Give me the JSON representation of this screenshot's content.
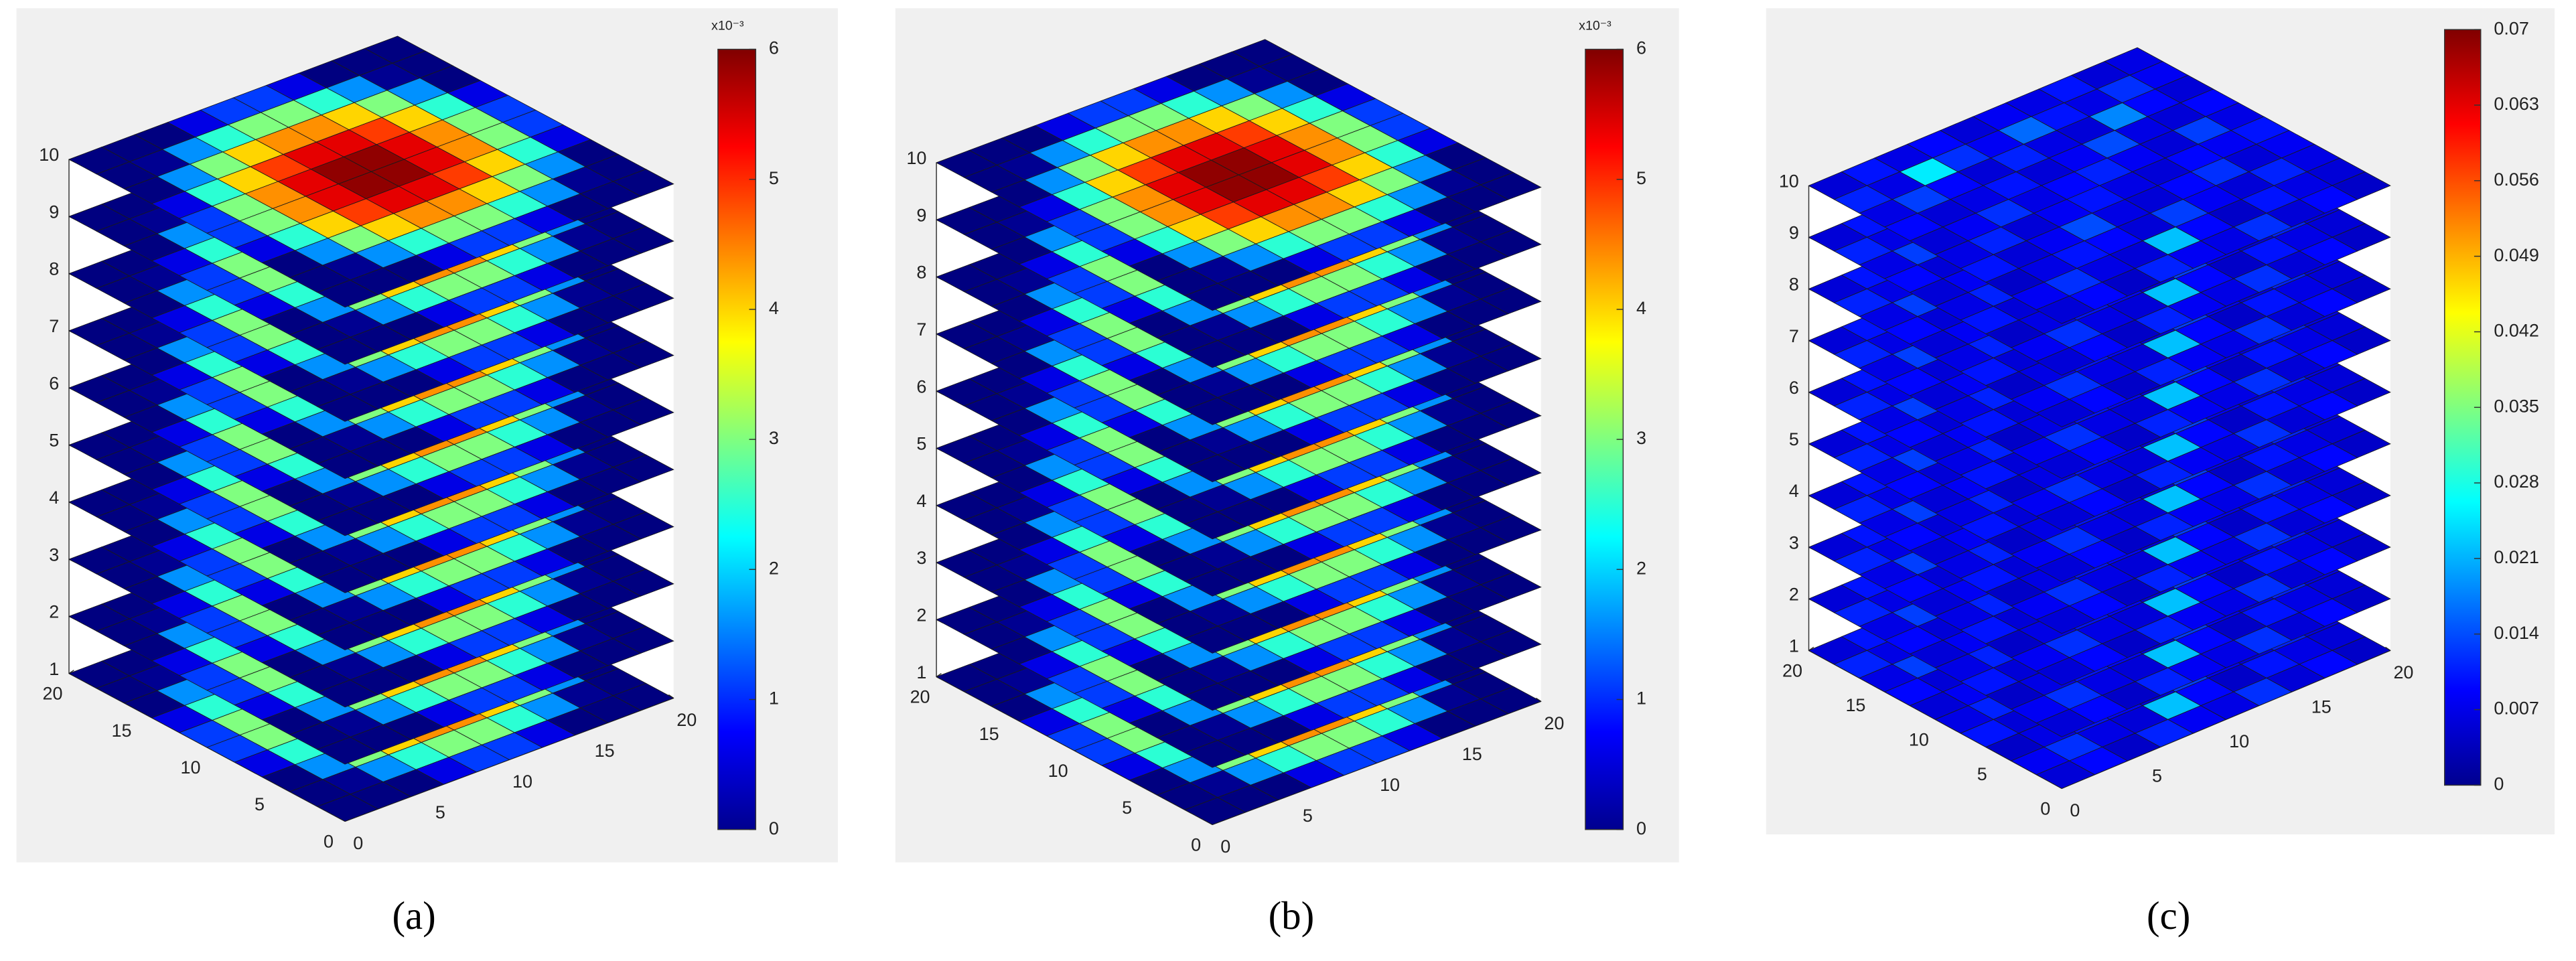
{
  "chart_data": [
    {
      "type": "heatmap3d",
      "label": "(a)",
      "colormap": "jet",
      "xlim": [
        0,
        20
      ],
      "ylim": [
        0,
        20
      ],
      "zlim": [
        1,
        10
      ],
      "xticks": [
        0,
        5,
        10,
        15,
        20
      ],
      "yticks": [
        0,
        5,
        10,
        15,
        20
      ],
      "zticks": [
        1,
        2,
        3,
        4,
        5,
        6,
        7,
        8,
        9,
        10
      ],
      "layers": [
        1,
        2,
        3,
        4,
        5,
        6,
        7,
        8,
        9,
        10
      ],
      "values": [
        [
          0,
          0,
          0,
          0.6,
          1.1,
          1.1,
          0.6,
          0,
          0,
          0
        ],
        [
          0,
          0.1,
          1.6,
          2.5,
          3,
          3,
          2.5,
          1.6,
          0.1,
          0
        ],
        [
          0,
          1.6,
          3,
          4,
          4.4,
          4.4,
          4,
          3,
          1.6,
          0
        ],
        [
          0.6,
          2.5,
          4,
          4.9,
          5.4,
          5.4,
          4.9,
          4,
          2.5,
          0.6
        ],
        [
          1.1,
          3,
          4.4,
          5.4,
          5.9,
          5.9,
          5.4,
          4.4,
          3,
          1.1
        ],
        [
          1.1,
          3,
          4.4,
          5.4,
          5.9,
          5.9,
          5.4,
          4.4,
          3,
          1.1
        ],
        [
          0.6,
          2.5,
          4,
          4.9,
          5.4,
          5.4,
          4.9,
          4,
          2.5,
          0.6
        ],
        [
          0,
          1.6,
          3,
          4,
          4.4,
          4.4,
          4,
          3,
          1.6,
          0
        ],
        [
          0,
          0.1,
          1.6,
          2.5,
          3,
          3,
          2.5,
          1.6,
          0.1,
          0
        ],
        [
          0,
          0,
          0,
          0.6,
          1.1,
          1.1,
          0.6,
          0,
          0,
          0
        ]
      ],
      "clim": [
        0,
        6
      ],
      "cticks": [
        0,
        1,
        2,
        3,
        4,
        5,
        6
      ],
      "colorbar_label": "x10⁻³"
    },
    {
      "type": "heatmap3d",
      "label": "(b)",
      "colormap": "jet",
      "xlim": [
        0,
        20
      ],
      "ylim": [
        0,
        20
      ],
      "zlim": [
        1,
        10
      ],
      "xticks": [
        0,
        5,
        10,
        15,
        20
      ],
      "yticks": [
        0,
        5,
        10,
        15,
        20
      ],
      "zticks": [
        1,
        2,
        3,
        4,
        5,
        6,
        7,
        8,
        9,
        10
      ],
      "layers": [
        1,
        2,
        3,
        4,
        5,
        6,
        7,
        8,
        9,
        10
      ],
      "values": [
        [
          0,
          0,
          0,
          0.6,
          1.1,
          1.1,
          0.6,
          0,
          0,
          0
        ],
        [
          0,
          0.1,
          1.6,
          2.5,
          3,
          3,
          2.5,
          1.6,
          0.1,
          0
        ],
        [
          0,
          1.6,
          3,
          4,
          4.4,
          4.4,
          4,
          3,
          1.6,
          0
        ],
        [
          0.6,
          2.5,
          4,
          4.9,
          5.4,
          5.4,
          4.9,
          4,
          2.5,
          0.6
        ],
        [
          1.1,
          3,
          4.4,
          5.4,
          5.9,
          5.9,
          5.4,
          4.4,
          3,
          1.1
        ],
        [
          1.1,
          3,
          4.4,
          5.4,
          5.9,
          5.9,
          5.4,
          4.4,
          3,
          1.1
        ],
        [
          0.6,
          2.5,
          4,
          4.9,
          5.4,
          5.4,
          4.9,
          4,
          2.5,
          0.6
        ],
        [
          0,
          1.6,
          3,
          4,
          4.4,
          4.4,
          4,
          3,
          1.6,
          0
        ],
        [
          0,
          0.1,
          1.6,
          2.5,
          3,
          3,
          2.5,
          1.6,
          0.1,
          0
        ],
        [
          0,
          0,
          0,
          0.6,
          1.1,
          1.1,
          0.6,
          0,
          0,
          0
        ]
      ],
      "clim": [
        0,
        6
      ],
      "cticks": [
        0,
        1,
        2,
        3,
        4,
        5,
        6
      ],
      "colorbar_label": "x10⁻³"
    },
    {
      "type": "heatmap3d",
      "label": "(c)",
      "colormap": "jet",
      "xlim": [
        0,
        20
      ],
      "ylim": [
        0,
        20
      ],
      "zlim": [
        1,
        10
      ],
      "xticks": [
        0,
        5,
        10,
        15,
        20
      ],
      "yticks": [
        0,
        5,
        10,
        15,
        20
      ],
      "zticks": [
        1,
        2,
        3,
        4,
        5,
        6,
        7,
        8,
        9,
        10
      ],
      "layers": [
        1,
        2,
        3,
        4,
        5,
        6,
        7,
        8,
        9,
        10
      ],
      "values": [
        [
          0.006,
          0.009,
          0.005,
          0.011,
          0.008,
          0.007,
          0.012,
          0.006,
          0.009,
          0.005
        ],
        [
          0.008,
          0.012,
          0.007,
          0.006,
          0.022,
          0.009,
          0.005,
          0.01,
          0.007,
          0.006
        ],
        [
          0.005,
          0.007,
          0.01,
          0.009,
          0.006,
          0.013,
          0.008,
          0.006,
          0.011,
          0.007
        ],
        [
          0.01,
          0.006,
          0.008,
          0.014,
          0.007,
          0.006,
          0.009,
          0.012,
          0.006,
          0.008
        ],
        [
          0.007,
          0.011,
          0.006,
          0.008,
          0.01,
          0.007,
          0.006,
          0.009,
          0.008,
          0.01
        ],
        [
          0.006,
          0.008,
          0.012,
          0.007,
          0.009,
          0.011,
          0.008,
          0.006,
          0.013,
          0.007
        ],
        [
          0.009,
          0.006,
          0.007,
          0.01,
          0.006,
          0.008,
          0.014,
          0.007,
          0.006,
          0.009
        ],
        [
          0.007,
          0.013,
          0.009,
          0.006,
          0.011,
          0.007,
          0.006,
          0.018,
          0.009,
          0.006
        ],
        [
          0.011,
          0.007,
          0.025,
          0.012,
          0.008,
          0.016,
          0.01,
          0.007,
          0.012,
          0.008
        ],
        [
          0.006,
          0.01,
          0.007,
          0.009,
          0.006,
          0.008,
          0.007,
          0.01,
          0.006,
          0.007
        ]
      ],
      "clim": [
        0,
        0.07
      ],
      "cticks": [
        0,
        0.007,
        0.014,
        0.021,
        0.028,
        0.035,
        0.042,
        0.049,
        0.056,
        0.063,
        0.07
      ]
    }
  ]
}
